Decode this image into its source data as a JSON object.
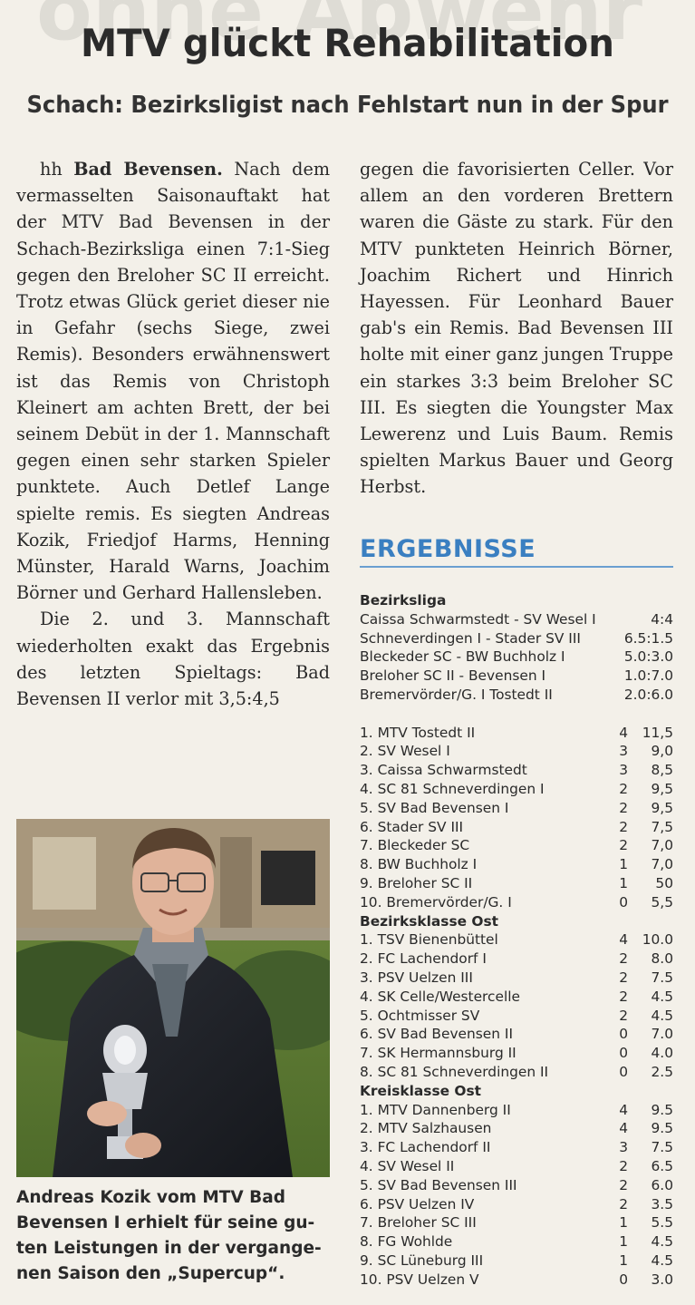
{
  "headline": "MTV glückt Rehabilitation",
  "subheadline": "Schach: Bezirksligist nach Fehlstart nun in der Spur",
  "article": {
    "byline": "hh",
    "place": "Bad Bevensen.",
    "para1_lines": [
      "Nach",
      "dem vermasselten Saisonauf-",
      "takt hat der MTV Bad Beven-",
      "sen in der Schach-Bezirksliga",
      "einen 7:1-Sieg gegen den Bre-",
      "loher SC II erreicht. Trotz et-",
      "was Glück geriet dieser nie in",
      "Gefahr (sechs Siege, zwei Re-",
      "mis). Besonders erwähnens-",
      "wert ist das Remis von Chris-",
      "toph Kleinert am achten Brett,",
      "der bei seinem Debüt in der 1.",
      "Mannschaft gegen einen sehr",
      "starken Spieler punktete.",
      "Auch Detlef Lange spielte re-",
      "mis. Es siegten Andreas Kozik,",
      "Friedjof Harms, Henning",
      "Münster, Harald Warns, Joa-",
      "chim Börner und Gerhard Hal-",
      "lensleben."
    ],
    "para2_lines": [
      "Die 2. und 3. Mannschaft",
      "wiederholten exakt das Ergeb-",
      "nis des letzten Spieltags: Bad",
      "Bevensen II verlor mit 3,5:4,5"
    ],
    "right_lines": [
      "gegen die favorisierten Celler.",
      "Vor allem an den vorderen",
      "Brettern waren die Gäste zu",
      "stark. Für den MTV punkteten",
      "Heinrich Börner, Joachim Ri-",
      "chert und Hinrich Hayessen.",
      "Für Leonhard Bauer gab's ein",
      "Remis. Bad Bevensen III holte",
      "mit einer ganz jungen Truppe",
      "ein starkes 3:3 beim Breloher",
      "SC III. Es siegten die Youngster",
      "Max Lewerenz und Luis Baum.",
      "Remis spielten Markus Bauer",
      "und Georg Herbst."
    ]
  },
  "caption_lines": [
    "Andreas Kozik vom MTV Bad",
    "Bevensen I erhielt für seine gu-",
    "ten Leistungen in der vergange-",
    "nen Saison den „Supercup“."
  ],
  "results": {
    "title": "ERGEBNISSE",
    "bezirksliga": {
      "title": "Bezirksliga",
      "matches": [
        {
          "pairing": "Caissa Schwarmstedt - SV Wesel I",
          "score": "4:4"
        },
        {
          "pairing": "Schneverdingen I - Stader SV III",
          "score": "6.5:1.5"
        },
        {
          "pairing": "Bleckeder SC - BW Buchholz I",
          "score": "5.0:3.0"
        },
        {
          "pairing": "Breloher SC II - Bevensen I",
          "score": "1.0:7.0"
        },
        {
          "pairing": "Bremervörder/G. I Tostedt II",
          "score": "2.0:6.0"
        }
      ],
      "table": [
        {
          "team": "1. MTV Tostedt II",
          "points": "4",
          "value": "11,5"
        },
        {
          "team": "2. SV Wesel I",
          "points": "3",
          "value": "9,0"
        },
        {
          "team": "3. Caissa Schwarmstedt",
          "points": "3",
          "value": "8,5"
        },
        {
          "team": "4. SC 81 Schneverdingen I",
          "points": "2",
          "value": "9,5"
        },
        {
          "team": "5. SV Bad Bevensen I",
          "points": "2",
          "value": "9,5"
        },
        {
          "team": "6. Stader SV III",
          "points": "2",
          "value": "7,5"
        },
        {
          "team": "7. Bleckeder SC",
          "points": "2",
          "value": "7,0"
        },
        {
          "team": "8. BW Buchholz I",
          "points": "1",
          "value": "7,0"
        },
        {
          "team": "9. Breloher SC II",
          "points": "1",
          "value": "50"
        },
        {
          "team": "10. Bremervörder/G. I",
          "points": "0",
          "value": "5,5"
        }
      ]
    },
    "bezirksklasse": {
      "title": "Bezirksklasse Ost",
      "table": [
        {
          "team": "1. TSV Bienenbüttel",
          "points": "4",
          "value": "10.0"
        },
        {
          "team": "2. FC Lachendorf I",
          "points": "2",
          "value": "8.0"
        },
        {
          "team": "3. PSV Uelzen III",
          "points": "2",
          "value": "7.5"
        },
        {
          "team": "4. SK Celle/Westercelle",
          "points": "2",
          "value": "4.5"
        },
        {
          "team": "5. Ochtmisser SV",
          "points": "2",
          "value": "4.5"
        },
        {
          "team": "6. SV Bad Bevensen II",
          "points": "0",
          "value": "7.0"
        },
        {
          "team": "7. SK Hermannsburg II",
          "points": "0",
          "value": "4.0"
        },
        {
          "team": "8. SC 81 Schneverdingen II",
          "points": "0",
          "value": "2.5"
        }
      ]
    },
    "kreisklasse": {
      "title": "Kreisklasse Ost",
      "table": [
        {
          "team": "1. MTV Dannenberg II",
          "points": "4",
          "value": "9.5"
        },
        {
          "team": "2. MTV Salzhausen",
          "points": "4",
          "value": "9.5"
        },
        {
          "team": "3. FC Lachendorf II",
          "points": "3",
          "value": "7.5"
        },
        {
          "team": "4. SV Wesel II",
          "points": "2",
          "value": "6.5"
        },
        {
          "team": "5. SV Bad Bevensen III",
          "points": "2",
          "value": "6.0"
        },
        {
          "team": "6. PSV Uelzen IV",
          "points": "2",
          "value": "3.5"
        },
        {
          "team": "7. Breloher SC III",
          "points": "1",
          "value": "5.5"
        },
        {
          "team": "8. FG Wohlde",
          "points": "1",
          "value": "4.5"
        },
        {
          "team": "9. SC Lüneburg III",
          "points": "1",
          "value": "4.5"
        },
        {
          "team": "10. PSV Uelzen V",
          "points": "0",
          "value": "3.0"
        }
      ]
    }
  }
}
